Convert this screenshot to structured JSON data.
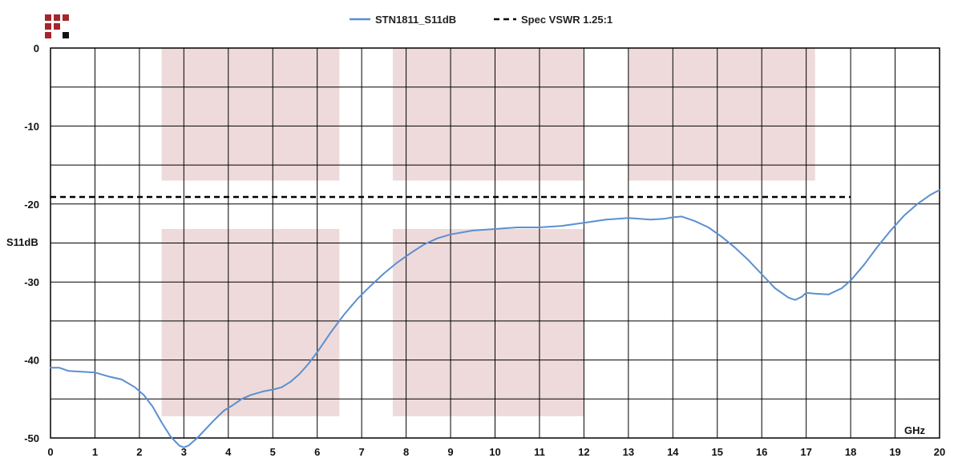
{
  "chart_data": {
    "type": "line",
    "xlabel": "GHz",
    "ylabel": "S11dB",
    "xlim": [
      0,
      20
    ],
    "ylim": [
      -50,
      0
    ],
    "x_ticks": [
      0,
      1,
      2,
      3,
      4,
      5,
      6,
      7,
      8,
      9,
      10,
      11,
      12,
      13,
      14,
      15,
      16,
      17,
      18,
      19,
      20
    ],
    "y_ticks": [
      0,
      -10,
      -20,
      -30,
      -40,
      -50
    ],
    "grid": true,
    "legend_position": "top-center",
    "series": [
      {
        "name": "STN1811_S11dB",
        "color": "#5b8fd0",
        "style": "solid",
        "x": [
          0,
          0.2,
          0.4,
          0.7,
          1.0,
          1.3,
          1.6,
          1.9,
          2.1,
          2.3,
          2.5,
          2.7,
          2.9,
          3.0,
          3.1,
          3.3,
          3.5,
          3.7,
          3.9,
          4.1,
          4.3,
          4.5,
          4.8,
          5.0,
          5.2,
          5.4,
          5.6,
          5.8,
          6.0,
          6.3,
          6.6,
          6.9,
          7.2,
          7.5,
          7.8,
          8.1,
          8.4,
          8.7,
          9.0,
          9.5,
          10.0,
          10.5,
          11.0,
          11.5,
          12.0,
          12.5,
          13.0,
          13.5,
          13.8,
          14.0,
          14.2,
          14.5,
          14.8,
          15.1,
          15.4,
          15.7,
          16.0,
          16.3,
          16.6,
          16.75,
          16.9,
          17.0,
          17.2,
          17.5,
          17.8,
          18.0,
          18.3,
          18.6,
          18.9,
          19.2,
          19.5,
          19.8,
          20.0
        ],
        "y": [
          -41.0,
          -41.0,
          -41.4,
          -41.5,
          -41.6,
          -42.1,
          -42.5,
          -43.5,
          -44.5,
          -46.0,
          -48.0,
          -49.8,
          -51.0,
          -51.2,
          -51.0,
          -50.0,
          -48.8,
          -47.6,
          -46.5,
          -45.8,
          -45.0,
          -44.5,
          -44.0,
          -43.8,
          -43.5,
          -42.8,
          -41.8,
          -40.5,
          -39.0,
          -36.5,
          -34.2,
          -32.2,
          -30.5,
          -28.9,
          -27.5,
          -26.3,
          -25.2,
          -24.4,
          -23.9,
          -23.4,
          -23.2,
          -23.0,
          -23.0,
          -22.8,
          -22.4,
          -22.0,
          -21.8,
          -22.0,
          -21.9,
          -21.7,
          -21.6,
          -22.2,
          -23.0,
          -24.2,
          -25.6,
          -27.2,
          -29.0,
          -30.8,
          -32.0,
          -32.3,
          -31.9,
          -31.4,
          -31.5,
          -31.6,
          -30.8,
          -29.8,
          -27.8,
          -25.5,
          -23.4,
          -21.5,
          -20.0,
          -18.8,
          -18.2
        ]
      },
      {
        "name": "Spec VSWR 1.25:1",
        "color": "#000000",
        "style": "dashed",
        "x": [
          0,
          18
        ],
        "y": [
          -19.1,
          -19.1
        ]
      }
    ],
    "shaded_regions": [
      {
        "x": [
          2.5,
          6.5
        ],
        "y": [
          -17,
          0
        ]
      },
      {
        "x": [
          7.7,
          12.0
        ],
        "y": [
          -17,
          0
        ]
      },
      {
        "x": [
          13.0,
          17.2
        ],
        "y": [
          -17,
          0
        ]
      },
      {
        "x": [
          2.5,
          6.5
        ],
        "y": [
          -47.2,
          -23.2
        ]
      },
      {
        "x": [
          7.7,
          12.0
        ],
        "y": [
          -47.2,
          -23.2
        ]
      }
    ],
    "shade_color": "#eedada"
  },
  "logo": {
    "red": "#a4262c",
    "black": "#111111"
  }
}
